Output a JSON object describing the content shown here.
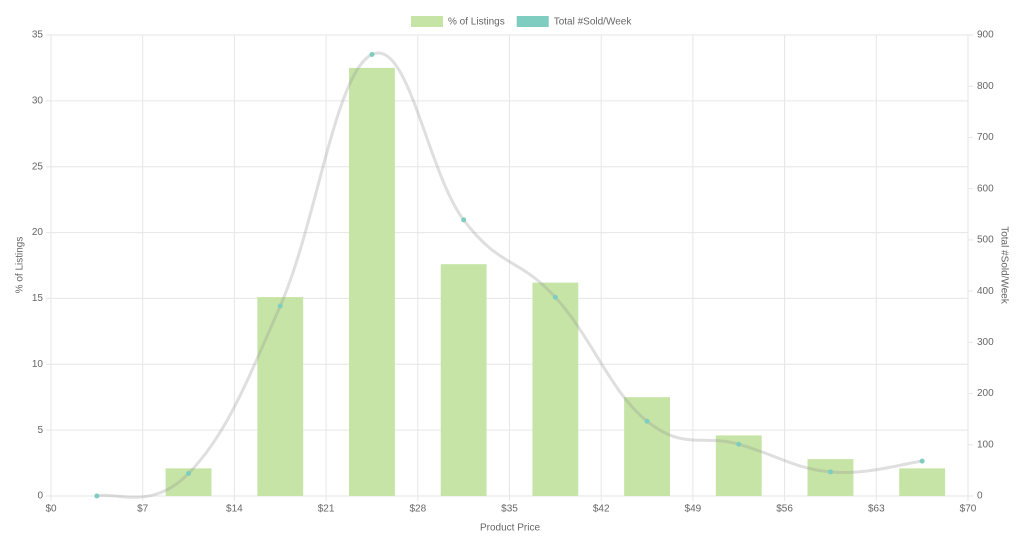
{
  "chart_data": {
    "type": "bar-line",
    "x_label": "Product Price",
    "y_label": "% of Listings",
    "y2_label": "Total #Sold/Week",
    "x": [
      3.5,
      10.5,
      17.5,
      24.5,
      31.5,
      38.5,
      45.5,
      52.5,
      59.5,
      66.5
    ],
    "series": [
      {
        "name": "% of Listings",
        "type": "bar",
        "color": "#c6e4a5",
        "values": [
          0,
          2.1,
          15.1,
          32.5,
          17.6,
          16.2,
          7.5,
          4.6,
          2.8,
          2.1
        ]
      },
      {
        "name": "Total #Sold/Week",
        "type": "line",
        "axis": "y2",
        "color": "#7ecdc0",
        "values": [
          0,
          44,
          371,
          862,
          539,
          388,
          146,
          101,
          47,
          68
        ]
      }
    ],
    "xlim": [
      0,
      70
    ],
    "xticks": [
      {
        "value": 0,
        "label": "$0"
      },
      {
        "value": 7,
        "label": "$7"
      },
      {
        "value": 14,
        "label": "$14"
      },
      {
        "value": 21,
        "label": "$21"
      },
      {
        "value": 28,
        "label": "$28"
      },
      {
        "value": 35,
        "label": "$35"
      },
      {
        "value": 42,
        "label": "$42"
      },
      {
        "value": 49,
        "label": "$49"
      },
      {
        "value": 56,
        "label": "$56"
      },
      {
        "value": 63,
        "label": "$63"
      },
      {
        "value": 70,
        "label": "$70"
      }
    ],
    "ylim": [
      0,
      35
    ],
    "yticks": [
      0,
      5,
      10,
      15,
      20,
      25,
      30,
      35
    ],
    "y2lim": [
      0,
      900
    ],
    "y2ticks": [
      0,
      100,
      200,
      300,
      400,
      500,
      600,
      700,
      800,
      900
    ],
    "grid": true,
    "legend": "top"
  }
}
